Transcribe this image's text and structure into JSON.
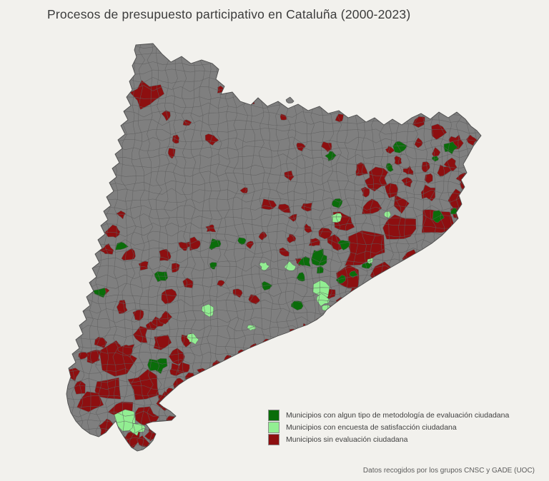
{
  "title": "Procesos de presupuesto participativo en Cataluña (2000-2023)",
  "footer": "Datos recogidos por los grupos CNSC y GADE (UOC)",
  "legend": {
    "items": [
      {
        "key": "dark_green",
        "label": "Municipios con algun tipo de metodología de evaluación ciudadana"
      },
      {
        "key": "light_green",
        "label": "Municipios con encuesta de satisfacción ciudadana"
      },
      {
        "key": "dark_red",
        "label": "Municipios sin evaluación ciudadana"
      }
    ]
  },
  "map": {
    "region": "Cataluña",
    "colors": {
      "background": "#f2f1ed",
      "base": "#7f7f7f",
      "border": "#5e5e5e",
      "outline": "#4d4d4d",
      "dark_green": "#0a6d0a",
      "light_green": "#92ee92",
      "dark_red": "#8d0f10"
    }
  }
}
